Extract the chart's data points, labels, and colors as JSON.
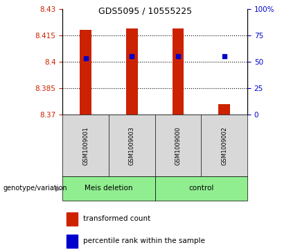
{
  "title": "GDS5095 / 10555225",
  "samples": [
    "GSM1009001",
    "GSM1009003",
    "GSM1009000",
    "GSM1009002"
  ],
  "groups": [
    "Meis deletion",
    "Meis deletion",
    "control",
    "control"
  ],
  "bar_bottom": 8.37,
  "bar_tops": [
    8.418,
    8.419,
    8.419,
    8.376
  ],
  "percentile_values": [
    8.402,
    8.403,
    8.403,
    8.403
  ],
  "ylim_left": [
    8.37,
    8.43
  ],
  "ylim_right": [
    0,
    100
  ],
  "yticks_left": [
    8.37,
    8.385,
    8.4,
    8.415,
    8.43
  ],
  "yticks_right": [
    0,
    25,
    50,
    75,
    100
  ],
  "ytick_labels_left": [
    "8.37",
    "8.385",
    "8.4",
    "8.415",
    "8.43"
  ],
  "ytick_labels_right": [
    "0",
    "25",
    "50",
    "75",
    "100%"
  ],
  "hlines": [
    8.385,
    8.4,
    8.415
  ],
  "bar_color": "#cc2200",
  "dot_color": "#0000cc",
  "bar_width": 0.25,
  "bg_color": "#d8d8d8",
  "green_color": "#90EE90",
  "plot_bg": "#ffffff",
  "legend_items": [
    "transformed count",
    "percentile rank within the sample"
  ],
  "genotype_label": "genotype/variation"
}
